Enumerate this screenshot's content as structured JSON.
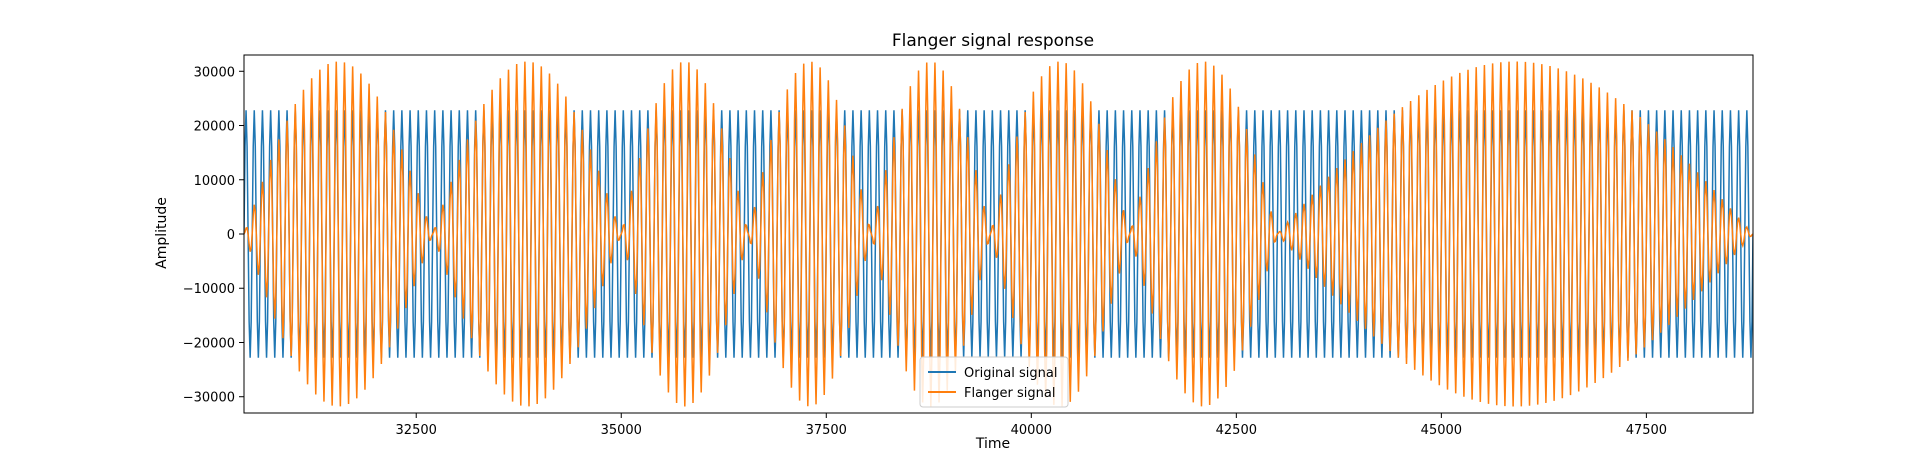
{
  "chart_data": {
    "type": "line",
    "title": "Flanger signal response",
    "xlabel": "Time",
    "ylabel": "Amplitude",
    "xlim": [
      30400,
      48800
    ],
    "ylim": [
      -33000,
      33000
    ],
    "xticks": [
      32500,
      35000,
      37500,
      40000,
      42500,
      45000,
      47500
    ],
    "yticks": [
      -30000,
      -20000,
      -10000,
      0,
      10000,
      20000,
      30000
    ],
    "xtick_labels": [
      "32500",
      "35000",
      "37500",
      "40000",
      "42500",
      "45000",
      "47500"
    ],
    "ytick_labels": [
      "−30000",
      "−20000",
      "−10000",
      "0",
      "10000",
      "20000",
      "30000"
    ],
    "grid": false,
    "legend_position": "bottom-center",
    "series": [
      {
        "name": "Original signal",
        "color": "#1f77b4",
        "amplitude": 22800,
        "period": 100
      },
      {
        "name": "Flanger signal",
        "color": "#ff7f0e",
        "carrier_period": 100,
        "envelope_peak": 31800,
        "envelope_nulls": [
          30400,
          32700,
          35000,
          36550,
          38050,
          39500,
          41200,
          43000,
          48800
        ]
      }
    ]
  }
}
